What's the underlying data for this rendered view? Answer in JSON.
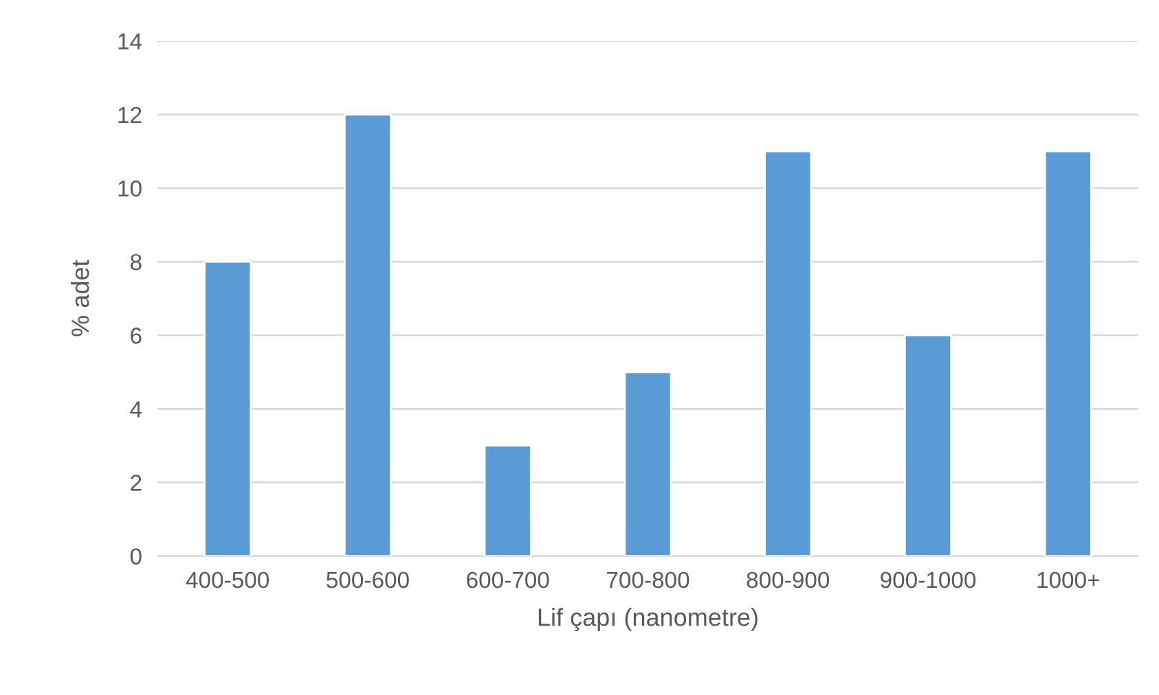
{
  "chart_data": {
    "type": "bar",
    "xlabel": "Lif çapı (nanometre)",
    "ylabel": "% adet",
    "categories": [
      "400-500",
      "500-600",
      "600-700",
      "700-800",
      "800-900",
      "900-1000",
      "1000+"
    ],
    "values": [
      8,
      12,
      3,
      5,
      11,
      6,
      11
    ],
    "color": "#5b9bd5",
    "ylim": [
      0,
      14
    ],
    "yticks": [
      0,
      2,
      4,
      6,
      8,
      10,
      12,
      14
    ],
    "grid": "y"
  }
}
